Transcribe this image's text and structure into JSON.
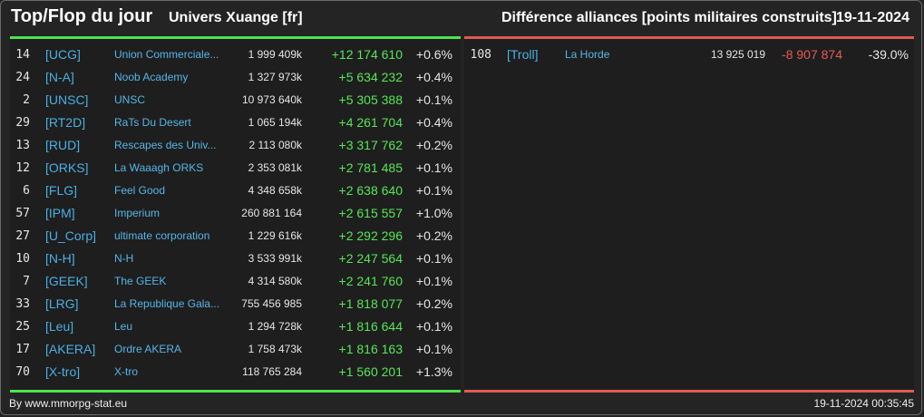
{
  "header": {
    "title": "Top/Flop du jour",
    "universe": "Univers Xuange [fr]",
    "subtitle": "Différence alliances [points militaires construits]",
    "date": "19-11-2024"
  },
  "top": [
    {
      "rank": "14",
      "tag": "[UCG]",
      "name": "Union Commerciale...",
      "points": "1 999 409k",
      "diff": "+12 174 610",
      "pct": "+0.6%"
    },
    {
      "rank": "24",
      "tag": "[N-A]",
      "name": "Noob Academy",
      "points": "1 327 973k",
      "diff": "+5 634 232",
      "pct": "+0.4%"
    },
    {
      "rank": "2",
      "tag": "[UNSC]",
      "name": "UNSC",
      "points": "10 973 640k",
      "diff": "+5 305 388",
      "pct": "+0.1%"
    },
    {
      "rank": "29",
      "tag": "[RT2D]",
      "name": "RaTs Du Desert",
      "points": "1 065 194k",
      "diff": "+4 261 704",
      "pct": "+0.4%"
    },
    {
      "rank": "13",
      "tag": "[RUD]",
      "name": "Rescapes des Univ...",
      "points": "2 113 080k",
      "diff": "+3 317 762",
      "pct": "+0.2%"
    },
    {
      "rank": "12",
      "tag": "[ORKS]",
      "name": "La Waaagh ORKS",
      "points": "2 353 081k",
      "diff": "+2 781 485",
      "pct": "+0.1%"
    },
    {
      "rank": "6",
      "tag": "[FLG]",
      "name": "Feel Good",
      "points": "4 348 658k",
      "diff": "+2 638 640",
      "pct": "+0.1%"
    },
    {
      "rank": "57",
      "tag": "[IPM]",
      "name": "Imperium",
      "points": "260 881 164",
      "diff": "+2 615 557",
      "pct": "+1.0%"
    },
    {
      "rank": "27",
      "tag": "[U_Corp]",
      "name": "ultimate corporation",
      "points": "1 229 616k",
      "diff": "+2 292 296",
      "pct": "+0.2%"
    },
    {
      "rank": "10",
      "tag": "[N-H]",
      "name": "N-H",
      "points": "3 533 991k",
      "diff": "+2 247 564",
      "pct": "+0.1%"
    },
    {
      "rank": "7",
      "tag": "[GEEK]",
      "name": "The GEEK",
      "points": "4 314 580k",
      "diff": "+2 241 760",
      "pct": "+0.1%"
    },
    {
      "rank": "33",
      "tag": "[LRG]",
      "name": "La Republique Gala...",
      "points": "755 456 985",
      "diff": "+1 818 077",
      "pct": "+0.2%"
    },
    {
      "rank": "25",
      "tag": "[Leu]",
      "name": "Leu",
      "points": "1 294 728k",
      "diff": "+1 816 644",
      "pct": "+0.1%"
    },
    {
      "rank": "17",
      "tag": "[AKERA]",
      "name": "Ordre AKERA",
      "points": "1 758 473k",
      "diff": "+1 816 163",
      "pct": "+0.1%"
    },
    {
      "rank": "70",
      "tag": "[X-tro]",
      "name": "X-tro",
      "points": "118 765 284",
      "diff": "+1 560 201",
      "pct": "+1.3%"
    }
  ],
  "flop": [
    {
      "rank": "108",
      "tag": "[Troll]",
      "name": "La Horde",
      "points": "13 925 019",
      "diff": "-8 907 874",
      "pct": "-39.0%"
    }
  ],
  "footer": {
    "credit": "By www.mmorpg-stat.eu",
    "timestamp": "19-11-2024 00:35:45"
  },
  "colors": {
    "positive": "#57e657",
    "negative": "#e65a55",
    "link": "#4ab0e6"
  }
}
